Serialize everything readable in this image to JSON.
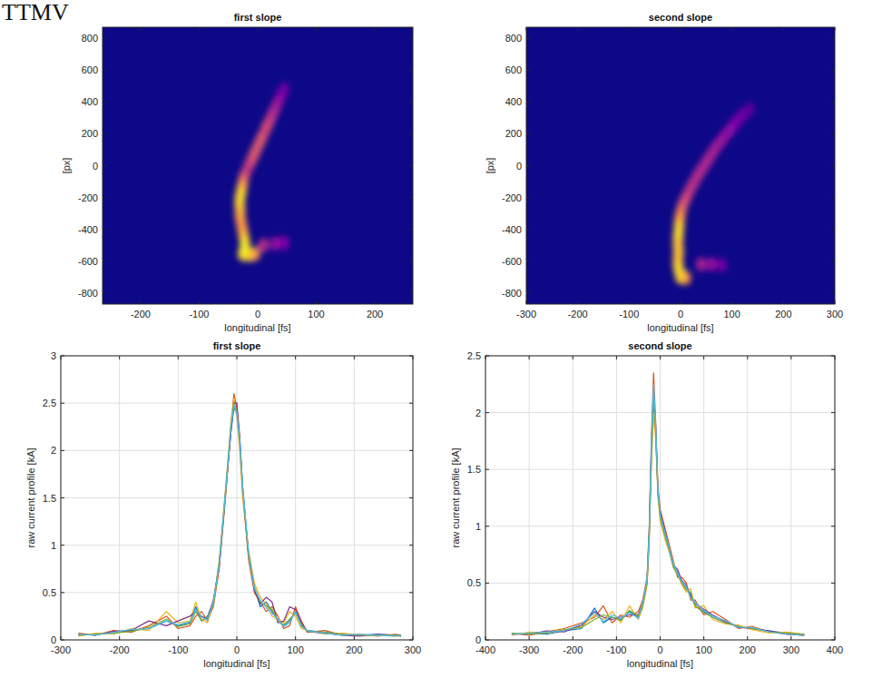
{
  "header": "TTMV",
  "chart_data": [
    {
      "type": "heatmap",
      "title": "first slope",
      "x_label": "longitudinal [fs]",
      "y_label": "[px]",
      "xlim": [
        -265,
        265
      ],
      "ylim": [
        -870,
        870
      ],
      "xticks": [
        -200,
        -100,
        0,
        100,
        200
      ],
      "yticks": [
        -800,
        -600,
        -400,
        -200,
        0,
        200,
        400,
        600,
        800
      ],
      "grid": false,
      "intensity_lim": [
        0,
        1
      ],
      "x": [
        -25,
        -15,
        -5,
        -22,
        -22,
        -24,
        -26,
        -28,
        -30,
        -30,
        -31,
        -30,
        -28,
        -26,
        -24,
        -20,
        -15,
        -10,
        -5,
        0,
        5,
        10,
        15,
        20,
        25,
        30,
        35,
        40,
        45,
        10,
        30,
        45
      ],
      "values": [
        -555,
        -560,
        -555,
        -520,
        -480,
        -440,
        -400,
        -360,
        -320,
        -280,
        -240,
        -200,
        -160,
        -120,
        -80,
        -40,
        0,
        40,
        80,
        120,
        160,
        200,
        240,
        280,
        320,
        360,
        400,
        440,
        480,
        -500,
        -490,
        -485
      ],
      "intensity": [
        0.9,
        0.85,
        0.7,
        0.95,
        0.9,
        0.8,
        0.75,
        0.7,
        0.75,
        0.8,
        0.85,
        0.9,
        0.85,
        0.7,
        0.55,
        0.4,
        0.45,
        0.5,
        0.55,
        0.5,
        0.55,
        0.45,
        0.5,
        0.45,
        0.4,
        0.35,
        0.3,
        0.25,
        0.2,
        0.4,
        0.3,
        0.25
      ]
    },
    {
      "type": "heatmap",
      "title": "second slope",
      "x_label": "longitudinal [fs]",
      "y_label": "[px]",
      "xlim": [
        -300,
        300
      ],
      "ylim": [
        -870,
        870
      ],
      "xticks": [
        -300,
        -200,
        -100,
        0,
        100,
        200,
        300
      ],
      "yticks": [
        -800,
        -600,
        -400,
        -200,
        0,
        200,
        400,
        600,
        800
      ],
      "grid": false,
      "intensity_lim": [
        0,
        1
      ],
      "x": [
        0,
        10,
        -3,
        -5,
        -5,
        -4,
        -5,
        -5,
        -4,
        -3,
        -2,
        0,
        3,
        8,
        14,
        20,
        27,
        34,
        42,
        50,
        58,
        66,
        75,
        85,
        95,
        105,
        115,
        125,
        135,
        40,
        60,
        80
      ],
      "values": [
        -700,
        -705,
        -660,
        -620,
        -580,
        -540,
        -500,
        -460,
        -420,
        -380,
        -340,
        -300,
        -260,
        -220,
        -180,
        -140,
        -100,
        -60,
        -20,
        20,
        60,
        100,
        140,
        180,
        220,
        260,
        300,
        330,
        355,
        -620,
        -620,
        -625
      ],
      "intensity": [
        0.85,
        0.7,
        0.9,
        0.85,
        0.8,
        0.85,
        0.8,
        0.85,
        0.9,
        0.85,
        0.75,
        0.65,
        0.55,
        0.5,
        0.45,
        0.42,
        0.4,
        0.4,
        0.38,
        0.38,
        0.36,
        0.35,
        0.33,
        0.3,
        0.28,
        0.25,
        0.22,
        0.18,
        0.15,
        0.35,
        0.3,
        0.22
      ]
    },
    {
      "type": "line",
      "title": "first slope",
      "x_label": "longitudinal [fs]",
      "y_label": "raw current profile [kA]",
      "xlim": [
        -300,
        300
      ],
      "ylim": [
        0,
        3
      ],
      "xticks": [
        -300,
        -200,
        -100,
        0,
        100,
        200,
        300
      ],
      "yticks": [
        0,
        0.5,
        1,
        1.5,
        2,
        2.5,
        3
      ],
      "grid": true,
      "x": [
        -270,
        -240,
        -210,
        -180,
        -150,
        -120,
        -100,
        -80,
        -70,
        -60,
        -50,
        -40,
        -30,
        -20,
        -10,
        -5,
        0,
        5,
        10,
        20,
        30,
        40,
        50,
        60,
        70,
        80,
        90,
        100,
        110,
        120,
        150,
        180,
        210,
        240,
        270,
        280
      ],
      "series": [
        {
          "color": "#0072bd",
          "values": [
            0.05,
            0.06,
            0.08,
            0.1,
            0.12,
            0.2,
            0.15,
            0.18,
            0.35,
            0.2,
            0.25,
            0.4,
            0.8,
            1.5,
            2.2,
            2.45,
            2.4,
            2.1,
            1.6,
            0.9,
            0.55,
            0.35,
            0.4,
            0.3,
            0.2,
            0.15,
            0.2,
            0.3,
            0.15,
            0.1,
            0.08,
            0.06,
            0.05,
            0.06,
            0.05,
            0.04
          ]
        },
        {
          "color": "#d95319",
          "values": [
            0.07,
            0.05,
            0.1,
            0.08,
            0.15,
            0.25,
            0.12,
            0.15,
            0.25,
            0.3,
            0.2,
            0.35,
            0.75,
            1.45,
            2.25,
            2.6,
            2.45,
            2.05,
            1.55,
            0.85,
            0.5,
            0.4,
            0.3,
            0.35,
            0.25,
            0.12,
            0.15,
            0.35,
            0.2,
            0.08,
            0.1,
            0.05,
            0.06,
            0.04,
            0.06,
            0.05
          ]
        },
        {
          "color": "#edb120",
          "values": [
            0.04,
            0.07,
            0.06,
            0.12,
            0.1,
            0.3,
            0.18,
            0.2,
            0.4,
            0.22,
            0.18,
            0.38,
            0.85,
            1.55,
            2.3,
            2.55,
            2.35,
            2.0,
            1.5,
            0.95,
            0.6,
            0.45,
            0.38,
            0.25,
            0.22,
            0.18,
            0.3,
            0.25,
            0.12,
            0.1,
            0.06,
            0.07,
            0.05,
            0.05,
            0.04,
            0.04
          ]
        },
        {
          "color": "#7e2f8e",
          "values": [
            0.06,
            0.05,
            0.09,
            0.1,
            0.2,
            0.15,
            0.2,
            0.25,
            0.3,
            0.25,
            0.22,
            0.42,
            0.78,
            1.5,
            2.2,
            2.5,
            2.5,
            2.15,
            1.6,
            0.9,
            0.52,
            0.38,
            0.45,
            0.4,
            0.18,
            0.2,
            0.35,
            0.32,
            0.18,
            0.09,
            0.07,
            0.05,
            0.04,
            0.06,
            0.05,
            0.05
          ]
        },
        {
          "color": "#77ac30",
          "values": [
            0.05,
            0.06,
            0.07,
            0.09,
            0.13,
            0.22,
            0.14,
            0.17,
            0.3,
            0.2,
            0.24,
            0.36,
            0.82,
            1.48,
            2.28,
            2.5,
            2.42,
            2.08,
            1.58,
            0.88,
            0.56,
            0.4,
            0.36,
            0.32,
            0.2,
            0.16,
            0.22,
            0.28,
            0.16,
            0.09,
            0.08,
            0.06,
            0.05,
            0.05,
            0.05,
            0.04
          ]
        },
        {
          "color": "#4dbeee",
          "values": [
            0.06,
            0.05,
            0.08,
            0.11,
            0.12,
            0.2,
            0.16,
            0.19,
            0.32,
            0.24,
            0.21,
            0.4,
            0.8,
            1.52,
            2.25,
            2.48,
            2.38,
            2.1,
            1.62,
            0.92,
            0.54,
            0.42,
            0.34,
            0.28,
            0.22,
            0.14,
            0.18,
            0.3,
            0.14,
            0.1,
            0.07,
            0.05,
            0.06,
            0.05,
            0.04,
            0.05
          ]
        }
      ]
    },
    {
      "type": "line",
      "title": "second slope",
      "x_label": "longitudinal [fs]",
      "y_label": "raw current profile [kA]",
      "xlim": [
        -400,
        400
      ],
      "ylim": [
        0,
        2.5
      ],
      "xticks": [
        -400,
        -300,
        -200,
        -100,
        0,
        100,
        200,
        300,
        400
      ],
      "yticks": [
        0,
        0.5,
        1,
        1.5,
        2,
        2.5
      ],
      "grid": true,
      "x": [
        -340,
        -300,
        -260,
        -220,
        -180,
        -150,
        -130,
        -110,
        -90,
        -70,
        -50,
        -40,
        -30,
        -25,
        -20,
        -15,
        -10,
        -5,
        0,
        10,
        20,
        30,
        40,
        50,
        60,
        70,
        80,
        100,
        120,
        150,
        180,
        210,
        250,
        290,
        330
      ],
      "series": [
        {
          "color": "#0072bd",
          "values": [
            0.05,
            0.06,
            0.05,
            0.08,
            0.1,
            0.28,
            0.15,
            0.2,
            0.18,
            0.25,
            0.2,
            0.3,
            0.5,
            0.9,
            1.6,
            2.1,
            1.8,
            1.3,
            1.1,
            0.95,
            0.8,
            0.65,
            0.6,
            0.5,
            0.45,
            0.4,
            0.3,
            0.25,
            0.2,
            0.15,
            0.12,
            0.1,
            0.08,
            0.06,
            0.05
          ]
        },
        {
          "color": "#d95319",
          "values": [
            0.06,
            0.04,
            0.07,
            0.1,
            0.15,
            0.2,
            0.3,
            0.15,
            0.22,
            0.2,
            0.25,
            0.35,
            0.55,
            1.0,
            1.8,
            2.35,
            1.9,
            1.35,
            1.15,
            1.0,
            0.85,
            0.7,
            0.55,
            0.55,
            0.5,
            0.35,
            0.35,
            0.22,
            0.25,
            0.18,
            0.1,
            0.12,
            0.07,
            0.05,
            0.04
          ]
        },
        {
          "color": "#edb120",
          "values": [
            0.04,
            0.07,
            0.06,
            0.09,
            0.12,
            0.22,
            0.18,
            0.25,
            0.15,
            0.3,
            0.18,
            0.28,
            0.48,
            0.85,
            1.55,
            2.0,
            1.75,
            1.25,
            1.05,
            0.9,
            0.78,
            0.68,
            0.58,
            0.48,
            0.42,
            0.45,
            0.28,
            0.3,
            0.18,
            0.14,
            0.13,
            0.09,
            0.06,
            0.07,
            0.05
          ]
        },
        {
          "color": "#7e2f8e",
          "values": [
            0.05,
            0.05,
            0.08,
            0.07,
            0.13,
            0.25,
            0.2,
            0.18,
            0.2,
            0.22,
            0.22,
            0.32,
            0.52,
            0.95,
            1.7,
            2.2,
            1.85,
            1.3,
            1.12,
            0.98,
            0.82,
            0.66,
            0.62,
            0.52,
            0.48,
            0.38,
            0.32,
            0.27,
            0.22,
            0.16,
            0.11,
            0.1,
            0.08,
            0.05,
            0.04
          ]
        },
        {
          "color": "#77ac30",
          "values": [
            0.06,
            0.05,
            0.06,
            0.09,
            0.11,
            0.18,
            0.22,
            0.2,
            0.17,
            0.26,
            0.21,
            0.3,
            0.5,
            0.92,
            1.65,
            2.15,
            1.82,
            1.28,
            1.08,
            0.93,
            0.8,
            0.64,
            0.57,
            0.5,
            0.44,
            0.42,
            0.3,
            0.24,
            0.2,
            0.15,
            0.12,
            0.1,
            0.07,
            0.06,
            0.05
          ]
        },
        {
          "color": "#4dbeee",
          "values": [
            0.05,
            0.06,
            0.07,
            0.08,
            0.14,
            0.24,
            0.16,
            0.22,
            0.19,
            0.24,
            0.19,
            0.33,
            0.53,
            0.97,
            1.75,
            2.25,
            1.88,
            1.32,
            1.1,
            0.96,
            0.82,
            0.67,
            0.59,
            0.51,
            0.47,
            0.37,
            0.33,
            0.26,
            0.21,
            0.17,
            0.11,
            0.11,
            0.07,
            0.05,
            0.04
          ]
        }
      ]
    }
  ]
}
